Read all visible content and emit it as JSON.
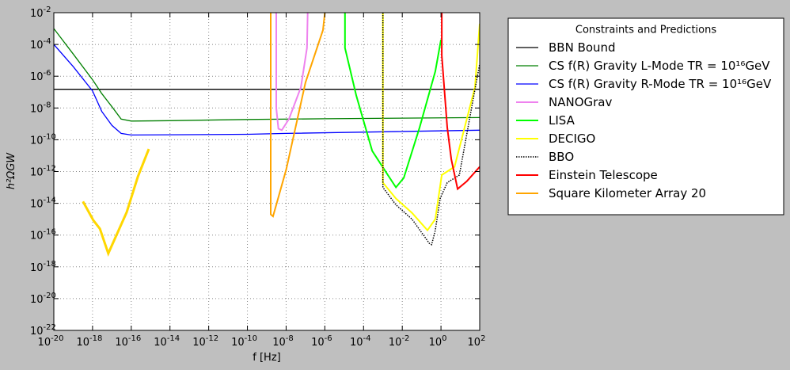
{
  "chart_data": {
    "type": "line",
    "xlabel": "f [Hz]",
    "ylabel": "h²ΩGW",
    "xscale": "log",
    "yscale": "log",
    "grid": true,
    "legend_title": "Constraints and Predictions",
    "legend": "upper right outside",
    "xlim": [
      1e-20,
      100
    ],
    "ylim": [
      1e-22,
      0.01
    ],
    "xticks": [
      {
        "value": 1e-20,
        "label": "10-20"
      },
      {
        "value": 1e-18,
        "label": "10-18"
      },
      {
        "value": 1e-16,
        "label": "10-16"
      },
      {
        "value": 1e-14,
        "label": "10-14"
      },
      {
        "value": 1e-12,
        "label": "10-12"
      },
      {
        "value": 1e-10,
        "label": "10-10"
      },
      {
        "value": 1e-08,
        "label": "10-8"
      },
      {
        "value": 1e-06,
        "label": "10-6"
      },
      {
        "value": 0.0001,
        "label": "10-4"
      },
      {
        "value": 0.01,
        "label": "10-2"
      },
      {
        "value": 1,
        "label": "100"
      },
      {
        "value": 100,
        "label": "102"
      }
    ],
    "yticks": [
      {
        "value": 1e-22,
        "label": "10-22"
      },
      {
        "value": 1e-20,
        "label": "10-20"
      },
      {
        "value": 1e-18,
        "label": "10-18"
      },
      {
        "value": 1e-16,
        "label": "10-16"
      },
      {
        "value": 1e-14,
        "label": "10-14"
      },
      {
        "value": 1e-12,
        "label": "10-12"
      },
      {
        "value": 1e-10,
        "label": "10-10"
      },
      {
        "value": 1e-08,
        "label": "10-8"
      },
      {
        "value": 1e-06,
        "label": "10-6"
      },
      {
        "value": 0.0001,
        "label": "10-4"
      },
      {
        "value": 0.01,
        "label": "10-2"
      }
    ],
    "series": [
      {
        "name": "BBN Bound",
        "color": "#000000",
        "linewidth": 1.3,
        "x": [
          1e-20,
          100
        ],
        "values": [
          1.5e-07,
          1.5e-07
        ]
      },
      {
        "name": "CS f(R) Gravity L-Mode TR = 10¹⁶GeV",
        "color": "#007f00",
        "linewidth": 1.3,
        "x": [
          1e-20,
          1e-19,
          1e-18,
          3e-18,
          1e-17,
          3e-17,
          1e-16,
          1e-14,
          1e-10,
          1e-06,
          0.01,
          100
        ],
        "values": [
          0.001,
          2.5e-05,
          6e-07,
          8e-08,
          1.2e-08,
          2e-09,
          1.5e-09,
          1.6e-09,
          1.9e-09,
          2.1e-09,
          2.3e-09,
          2.5e-09
        ]
      },
      {
        "name": "CS f(R) Gravity R-Mode TR = 10¹⁶GeV",
        "color": "#0000ff",
        "linewidth": 1.3,
        "x": [
          1e-20,
          1e-19,
          1e-18,
          3e-18,
          1e-17,
          3e-17,
          1e-16,
          1e-10,
          1e-08,
          100
        ],
        "values": [
          0.0001,
          4e-06,
          1.2e-07,
          6e-09,
          8e-10,
          2.5e-10,
          2e-10,
          2.2e-10,
          2.5e-10,
          4e-10
        ]
      },
      {
        "name": "NANOGrav",
        "color": "#ee82ee",
        "linewidth": 2,
        "x": [
          3.1e-09,
          3.1e-09,
          4e-09,
          6e-09,
          1.4e-08,
          5.8e-08,
          1.2e-07,
          1.3e-07
        ],
        "values": [
          0.01,
          1e-08,
          5e-10,
          4e-10,
          2e-09,
          2e-07,
          6e-05,
          0.01
        ]
      },
      {
        "name": "LISA",
        "color": "#00ff00",
        "linewidth": 2,
        "x": [
          1.1e-05,
          1.1e-05,
          4.2e-05,
          0.00028,
          0.0018,
          0.0047,
          0.012,
          0.079,
          0.51,
          1
        ],
        "values": [
          0.01,
          6e-05,
          6e-08,
          2e-11,
          6e-13,
          1e-13,
          4e-13,
          6e-10,
          2e-06,
          0.0002
        ]
      },
      {
        "name": "DECIGO",
        "color": "#ffff00",
        "linewidth": 2,
        "x": [
          0.001,
          0.001,
          0.0047,
          0.032,
          0.2,
          0.51,
          1.1,
          5,
          57,
          100
        ],
        "values": [
          0.01,
          2e-13,
          2e-14,
          2.5e-15,
          2e-16,
          1e-15,
          6e-13,
          2e-12,
          2e-07,
          0.002
        ]
      },
      {
        "name": "BBO",
        "color": "#000000",
        "linewidth": 1.5,
        "dash": "1.5 1.5",
        "x": [
          0.001,
          0.001,
          0.0047,
          0.032,
          0.25,
          0.33,
          0.51,
          0.9,
          2.1,
          8.9,
          35,
          100
        ],
        "values": [
          0.01,
          1e-13,
          8e-15,
          1e-15,
          3e-17,
          2.5e-17,
          2e-16,
          2e-14,
          2e-13,
          6e-13,
          6e-09,
          6e-06
        ]
      },
      {
        "name": "Einstein Telescope",
        "color": "#ff0000",
        "linewidth": 2,
        "x": [
          1.1,
          1.1,
          2.1,
          3.4,
          7.2,
          22,
          100
        ],
        "values": [
          0.01,
          2e-05,
          6e-10,
          6e-12,
          8e-14,
          2.5e-13,
          2e-12
        ]
      },
      {
        "name": "Square Kilometer Array 20",
        "color": "#ffa500",
        "linewidth": 2,
        "x": [
          1.6e-09,
          1.6e-09,
          2.1e-09,
          1e-08,
          1e-07,
          8e-07,
          1e-06
        ],
        "values": [
          0.01,
          2e-15,
          1.5e-15,
          1.3e-12,
          4e-07,
          0.0008,
          0.01
        ]
      },
      {
        "color": "#ffd700",
        "linewidth": 3,
        "x": [
          3.2e-19,
          1.1e-18,
          2.4e-18,
          6.5e-18,
          5.8e-17,
          2.2e-16,
          8.1e-16
        ],
        "values": [
          1.3e-14,
          8.5e-16,
          2.5e-16,
          7e-18,
          2.7e-15,
          4.8e-13,
          2.6e-11
        ]
      }
    ]
  }
}
